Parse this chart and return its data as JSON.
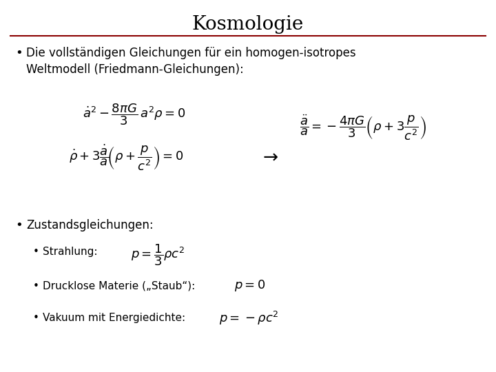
{
  "title": "Kosmologie",
  "title_fontsize": 20,
  "title_color": "#000000",
  "bg_color": "#ffffff",
  "line_color": "#8B0000",
  "bullet1_text": "Die vollständigen Gleichungen für ein homogen-isotropes\nWeltmodell (Friedmann-Gleichungen):",
  "eq1a": "$\\dot{a}^2 - \\dfrac{8\\pi G}{3}\\,a^2\\rho = 0$",
  "eq1b": "$\\dot{\\rho} + 3\\dfrac{\\dot{a}}{a}\\!\\left(\\rho + \\dfrac{p}{c^2}\\right) = 0$",
  "arrow": "$\\rightarrow$",
  "eq2": "$\\dfrac{\\ddot{a}}{a} = -\\dfrac{4\\pi G}{3}\\left(\\rho + 3\\dfrac{p}{c^2}\\right)$",
  "bullet2_text": "Zustandsgleichungen:",
  "sub1_label": "Strahlung:",
  "sub1_eq": "$p = \\dfrac{1}{3}\\rho c^2$",
  "sub2_label": "Drucklose Materie („Staub“):",
  "sub2_eq": "$p = 0$",
  "sub3_label": "Vakuum mit Energiedichte:",
  "sub3_eq": "$p = -\\rho c^2$",
  "text_fontsize": 12,
  "eq_fontsize": 11,
  "sub_fontsize": 11,
  "sub_eq_fontsize": 12
}
